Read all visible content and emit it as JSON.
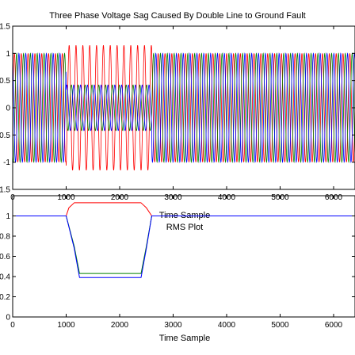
{
  "chart_data": [
    {
      "type": "line",
      "title": "Three Phase Voltage Sag Caused By Double Line to Ground Fault",
      "xlabel": "Time Sample",
      "ylabel": "",
      "xlim": [
        0,
        6400
      ],
      "ylim": [
        -1.5,
        1.5
      ],
      "x_ticks": [
        "0",
        "1000",
        "2000",
        "3000",
        "4000",
        "5000",
        "6000"
      ],
      "y_ticks": [
        "-1.5",
        "-1",
        "-0.5",
        "0",
        "0.5",
        "1",
        "1.5"
      ],
      "signal": {
        "samples_per_cycle": 128,
        "n_samples": 6400,
        "nominal_amplitude": 1.0,
        "sag_start": 1000,
        "sag_end": 2600,
        "phase_deg": [
          0,
          -120,
          120
        ],
        "sag_amplitude": [
          1.15,
          0.42,
          0.42
        ]
      },
      "series": [
        {
          "color": "#ff0000"
        },
        {
          "color": "#008000"
        },
        {
          "color": "#0000ff"
        }
      ],
      "grid": false
    },
    {
      "type": "line",
      "title": "RMS Plot",
      "xlabel": "Time Sample",
      "ylabel": "",
      "xlim": [
        0,
        6400
      ],
      "ylim": [
        0,
        1.2
      ],
      "x_ticks": [
        "0",
        "1000",
        "2000",
        "3000",
        "4000",
        "5000",
        "6000"
      ],
      "y_ticks": [
        "0",
        "0.2",
        "0.4",
        "0.6",
        "0.8",
        "1"
      ],
      "series": [
        {
          "color": "#ff0000",
          "x": [
            0,
            1000,
            1050,
            1150,
            2400,
            2500,
            2600,
            6400
          ],
          "y": [
            1,
            1,
            1.08,
            1.13,
            1.13,
            1.08,
            1,
            1
          ]
        },
        {
          "color": "#008000",
          "x": [
            0,
            1000,
            1150,
            1250,
            2400,
            2500,
            2600,
            6400
          ],
          "y": [
            1,
            1,
            0.7,
            0.43,
            0.43,
            0.7,
            1,
            1
          ]
        },
        {
          "color": "#0000ff",
          "x": [
            0,
            1000,
            1150,
            1250,
            2400,
            2500,
            2600,
            6400
          ],
          "y": [
            1,
            1,
            0.68,
            0.39,
            0.39,
            0.68,
            1,
            1
          ]
        }
      ],
      "grid": false
    }
  ]
}
